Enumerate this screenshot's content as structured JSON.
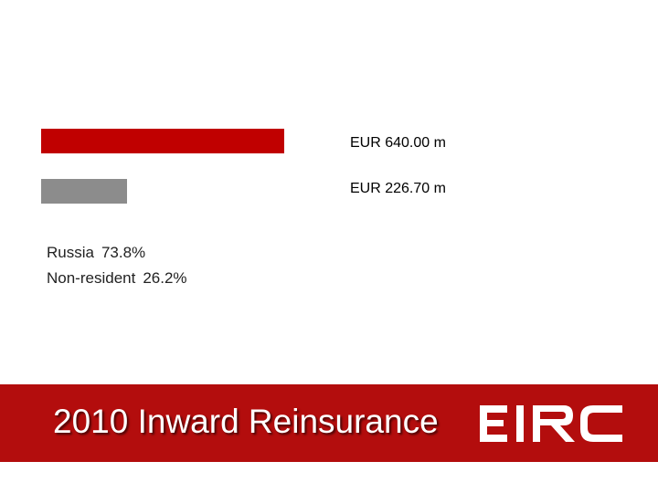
{
  "chart_data": {
    "type": "bar",
    "orientation": "horizontal",
    "categories": [
      "Russia",
      "Non-resident"
    ],
    "values": [
      640.0,
      226.7
    ],
    "value_labels": [
      "EUR 640.00 m",
      "EUR 226.70 m"
    ],
    "shares": [
      "73.8%",
      "26.2%"
    ],
    "colors": [
      "#c00000",
      "#8c8c8c"
    ],
    "xlim": [
      0,
      640
    ]
  },
  "footer": {
    "title": "2010 Inward Reinsurance",
    "band_color": "#b30d0d"
  },
  "logo": {
    "icon": "eirc-logo-icon",
    "text": "EIRC"
  }
}
